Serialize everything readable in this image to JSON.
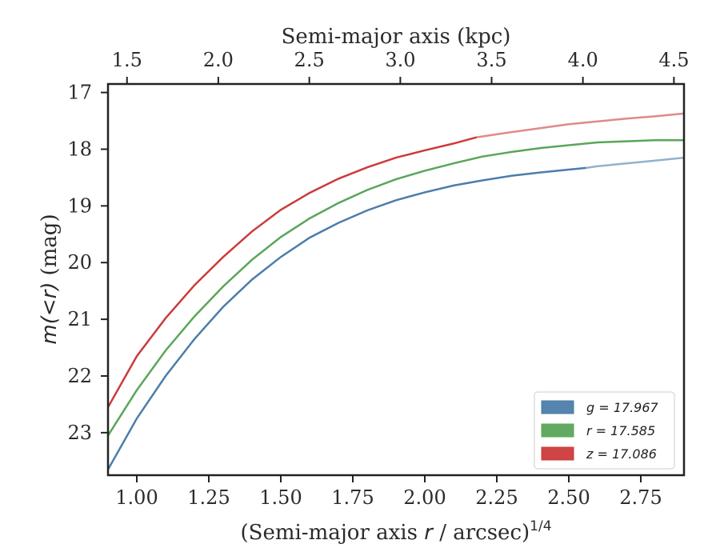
{
  "chart_data": {
    "type": "line",
    "xlabel_prefix": "(Semi-major axis ",
    "xlabel_var": "r",
    "xlabel_suffix": " / arcsec)",
    "xlabel_exponent": "1/4",
    "ylabel_var": "m(<r)",
    "ylabel_unit": "(mag)",
    "top_xlabel": "Semi-major axis (kpc)",
    "xlim": [
      0.9,
      2.9
    ],
    "ylim": [
      23.75,
      16.85
    ],
    "y_inverted": true,
    "xticks": [
      1.0,
      1.25,
      1.5,
      1.75,
      2.0,
      2.25,
      2.5,
      2.75
    ],
    "xtick_labels": [
      "1.00",
      "1.25",
      "1.50",
      "1.75",
      "2.00",
      "2.25",
      "2.50",
      "2.75"
    ],
    "yticks": [
      17,
      18,
      19,
      20,
      21,
      22,
      23
    ],
    "ytick_labels": [
      "17",
      "18",
      "19",
      "20",
      "21",
      "22",
      "23"
    ],
    "top_xticks": [
      1.5,
      2.0,
      2.5,
      3.0,
      3.5,
      4.0,
      4.5
    ],
    "top_xtick_labels": [
      "1.5",
      "2.0",
      "2.5",
      "3.0",
      "3.5",
      "4.0",
      "4.5"
    ],
    "top_xtick_positions": [
      0.966,
      1.283,
      1.599,
      1.915,
      2.232,
      2.549,
      2.865
    ],
    "grid": false,
    "legend_position": "bottom-right",
    "series": [
      {
        "name": "g = 17.967",
        "legend_label": "g = 17.967",
        "color": "#4c7daa",
        "solid_end_x": 2.56,
        "points": [
          [
            0.9,
            23.65
          ],
          [
            1.0,
            22.75
          ],
          [
            1.1,
            22.0
          ],
          [
            1.2,
            21.35
          ],
          [
            1.3,
            20.78
          ],
          [
            1.4,
            20.3
          ],
          [
            1.5,
            19.9
          ],
          [
            1.6,
            19.56
          ],
          [
            1.7,
            19.3
          ],
          [
            1.8,
            19.08
          ],
          [
            1.9,
            18.9
          ],
          [
            2.0,
            18.76
          ],
          [
            2.1,
            18.64
          ],
          [
            2.2,
            18.55
          ],
          [
            2.3,
            18.47
          ],
          [
            2.4,
            18.41
          ],
          [
            2.5,
            18.36
          ],
          [
            2.56,
            18.33
          ],
          [
            2.6,
            18.3
          ],
          [
            2.7,
            18.25
          ],
          [
            2.8,
            18.2
          ],
          [
            2.9,
            18.15
          ]
        ]
      },
      {
        "name": "r = 17.585",
        "legend_label": "r = 17.585",
        "color": "#5aa55a",
        "solid_end_x": 2.9,
        "points": [
          [
            0.9,
            23.05
          ],
          [
            1.0,
            22.25
          ],
          [
            1.1,
            21.55
          ],
          [
            1.2,
            20.95
          ],
          [
            1.3,
            20.42
          ],
          [
            1.4,
            19.95
          ],
          [
            1.5,
            19.55
          ],
          [
            1.6,
            19.22
          ],
          [
            1.7,
            18.95
          ],
          [
            1.8,
            18.72
          ],
          [
            1.9,
            18.53
          ],
          [
            2.0,
            18.38
          ],
          [
            2.1,
            18.25
          ],
          [
            2.2,
            18.13
          ],
          [
            2.3,
            18.05
          ],
          [
            2.4,
            17.98
          ],
          [
            2.5,
            17.93
          ],
          [
            2.6,
            17.88
          ],
          [
            2.7,
            17.86
          ],
          [
            2.8,
            17.84
          ],
          [
            2.9,
            17.84
          ]
        ]
      },
      {
        "name": "z = 17.086",
        "legend_label": "z = 17.086",
        "color": "#cc3b3b",
        "solid_end_x": 2.18,
        "points": [
          [
            0.9,
            22.55
          ],
          [
            1.0,
            21.65
          ],
          [
            1.1,
            20.98
          ],
          [
            1.2,
            20.4
          ],
          [
            1.3,
            19.9
          ],
          [
            1.4,
            19.45
          ],
          [
            1.5,
            19.07
          ],
          [
            1.6,
            18.77
          ],
          [
            1.7,
            18.52
          ],
          [
            1.8,
            18.32
          ],
          [
            1.9,
            18.15
          ],
          [
            2.0,
            18.02
          ],
          [
            2.1,
            17.9
          ],
          [
            2.18,
            17.79
          ],
          [
            2.3,
            17.7
          ],
          [
            2.4,
            17.63
          ],
          [
            2.5,
            17.56
          ],
          [
            2.6,
            17.51
          ],
          [
            2.7,
            17.46
          ],
          [
            2.8,
            17.42
          ],
          [
            2.9,
            17.37
          ]
        ]
      }
    ]
  }
}
